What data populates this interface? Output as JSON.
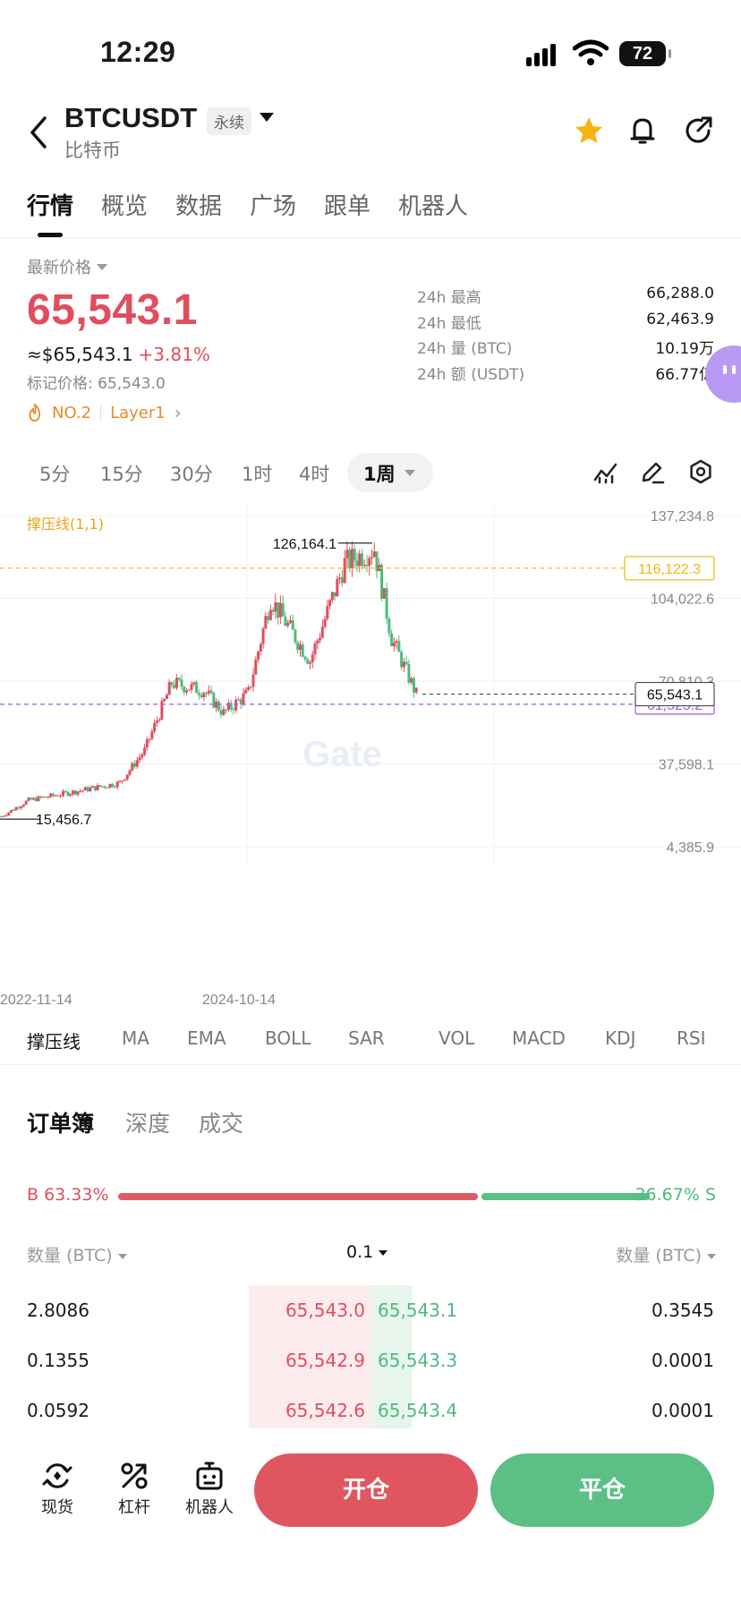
{
  "status_bar": {
    "time": "12:29",
    "battery": "72"
  },
  "header": {
    "pair": "BTCUSDT",
    "contract_tag": "永续",
    "subtitle": "比特币"
  },
  "tabs": [
    "行情",
    "概览",
    "数据",
    "广场",
    "跟单",
    "机器人"
  ],
  "price": {
    "label": "最新价格",
    "last": "65,543.1",
    "usd": "≈$65,543.1",
    "change": "+3.81%",
    "mark": "标记价格: 65,543.0",
    "rank": "NO.2",
    "sector": "Layer1"
  },
  "stats": [
    {
      "label": "24h  最高",
      "value": "66,288.0"
    },
    {
      "label": "24h  最低",
      "value": "62,463.9"
    },
    {
      "label": "24h  量 (BTC)",
      "value": "10.19万"
    },
    {
      "label": "24h  额 (USDT)",
      "value": "66.77亿"
    }
  ],
  "timeframes": [
    "5分",
    "15分",
    "30分",
    "1时",
    "4时"
  ],
  "active_timeframe": "1周",
  "chart": {
    "indicator_label": "撑压线(1,1)",
    "watermark": "Gate",
    "y_labels": [
      "137,234.8",
      "104,022.6",
      "70,810.3",
      "37,598.1",
      "4,385.9"
    ],
    "resistance": "116,122.3",
    "support": "61,525.2",
    "last_price_tag": "65,543.1",
    "high_label": "126,164.1",
    "low_label": "15,456.7",
    "x_labels": [
      "2022-11-14",
      "2024-10-14"
    ]
  },
  "chart_data": {
    "type": "candlestick",
    "series": [
      {
        "name": "BTCUSDT"
      }
    ],
    "x_range": [
      "2022-11-14",
      "2026-02"
    ],
    "ylim": [
      4385.9,
      137234.8
    ],
    "close_path_approx": [
      [
        "2022-11-14",
        16500
      ],
      [
        "2023-01-30",
        23000
      ],
      [
        "2023-06-12",
        26500
      ],
      [
        "2023-10-16",
        30000
      ],
      [
        "2023-12-25",
        43000
      ],
      [
        "2024-03-11",
        70000
      ],
      [
        "2024-06-10",
        67000
      ],
      [
        "2024-08-05",
        58000
      ],
      [
        "2024-10-14",
        66000
      ],
      [
        "2024-12-16",
        104000
      ],
      [
        "2025-04-07",
        79000
      ],
      [
        "2025-07-14",
        118000
      ],
      [
        "2025-10-06",
        124000
      ],
      [
        "2025-11-24",
        88000
      ],
      [
        "2026-02-02",
        65543
      ]
    ],
    "annotations": {
      "high": 126164.1,
      "low": 15456.7,
      "resistance": 116122.3,
      "support": 61525.2,
      "last": 65543.1
    }
  },
  "indicators": [
    "撑压线",
    "MA",
    "EMA",
    "BOLL",
    "SAR",
    "VOL",
    "MACD",
    "KDJ",
    "RSI"
  ],
  "orderbook": {
    "tabs": [
      "订单簿",
      "深度",
      "成交"
    ],
    "buy_ratio": "B 63.33%",
    "sell_ratio": "36.67% S",
    "buy_fraction": 0.6333,
    "sell_fraction": 0.3667,
    "col_left": "数量 (BTC)",
    "precision": "0.1",
    "col_right": "数量 (BTC)",
    "rows": [
      {
        "bid_qty": "2.8086",
        "bid_price": "65,543.0",
        "ask_price": "65,543.1",
        "ask_qty": "0.3545"
      },
      {
        "bid_qty": "0.1355",
        "bid_price": "65,542.9",
        "ask_price": "65,543.3",
        "ask_qty": "0.0001"
      },
      {
        "bid_qty": "0.0592",
        "bid_price": "65,542.6",
        "ask_price": "65,543.4",
        "ask_qty": "0.0001"
      }
    ]
  },
  "bottom_nav": [
    {
      "label": "现货"
    },
    {
      "label": "杠杆"
    },
    {
      "label": "机器人"
    }
  ],
  "actions": {
    "open": "开仓",
    "close": "平仓"
  },
  "colors": {
    "up": "#e04e5e",
    "down": "#4dbb7b",
    "resistance": "#f0b90b",
    "support": "#a35be0"
  }
}
